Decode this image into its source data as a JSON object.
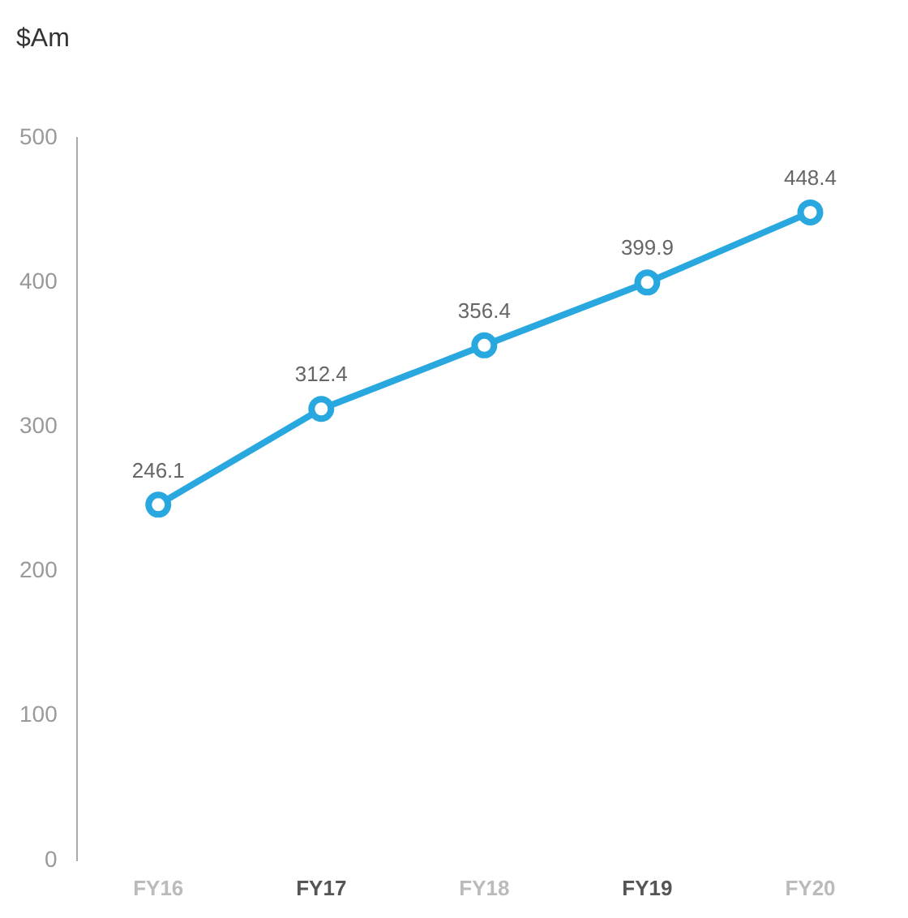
{
  "chart_data": {
    "type": "line",
    "ylabel": "$Am",
    "categories": [
      "FY16",
      "FY17",
      "FY18",
      "FY19",
      "FY20"
    ],
    "series": [
      {
        "color": "#29a8e0",
        "values": [
          246.1,
          312.4,
          356.4,
          399.9,
          448.4
        ]
      }
    ],
    "ylim": [
      0,
      500
    ],
    "yticks": [
      0,
      100,
      200,
      300,
      400,
      500
    ],
    "grid": false,
    "legend": false,
    "marker": "circle",
    "line_style": "solid",
    "data_labels": true
  }
}
